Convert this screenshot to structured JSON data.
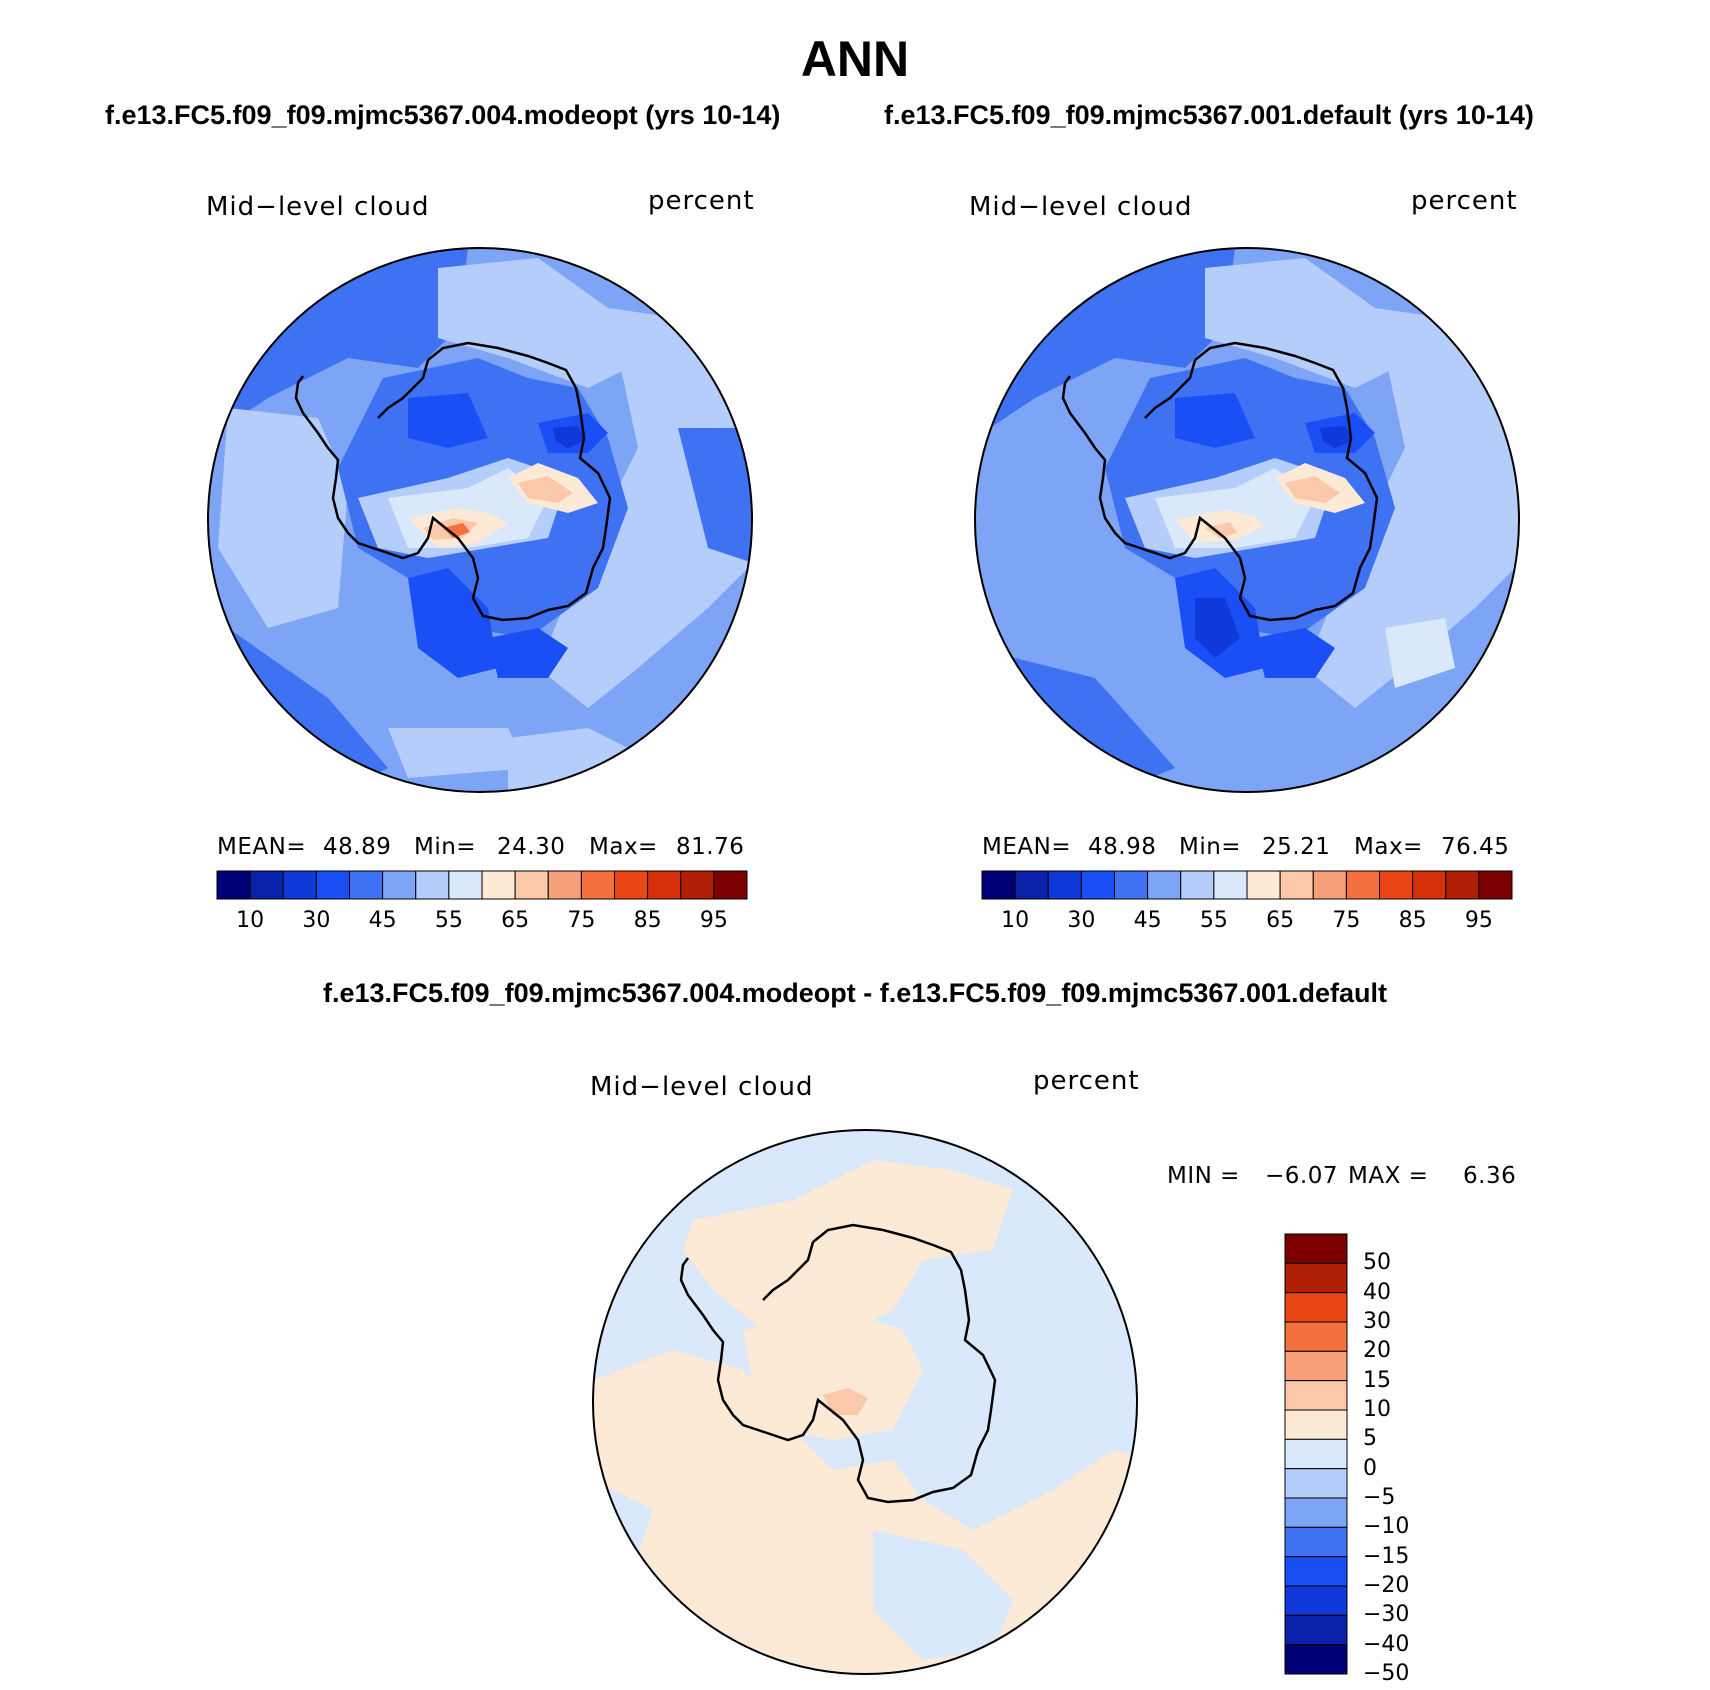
{
  "title": "ANN",
  "case_titles": {
    "left": "f.e13.FC5.f09_f09.mjmc5367.004.modeopt (yrs 10-14)",
    "right": "f.e13.FC5.f09_f09.mjmc5367.001.default (yrs 10-14)"
  },
  "diff_title": "f.e13.FC5.f09_f09.mjmc5367.004.modeopt - f.e13.FC5.f09_f09.mjmc5367.001.default",
  "panels": {
    "left": {
      "variable": "Mid−level cloud",
      "units": "percent",
      "mean_label": "MEAN=",
      "mean": "48.89",
      "min_label": "Min=",
      "min": "24.30",
      "max_label": "Max=",
      "max": "81.76"
    },
    "right": {
      "variable": "Mid−level cloud",
      "units": "percent",
      "mean_label": "MEAN=",
      "mean": "48.98",
      "min_label": "Min=",
      "min": "25.21",
      "max_label": "Max=",
      "max": "76.45"
    },
    "diff": {
      "variable": "Mid−level cloud",
      "units": "percent",
      "min_label": "MIN =",
      "min": "−6.07",
      "max_label": "MAX =",
      "max": "6.36"
    }
  },
  "colorbar_abs": {
    "tick_labels": [
      "10",
      "30",
      "45",
      "55",
      "65",
      "75",
      "85",
      "95"
    ],
    "colors": [
      "#000077",
      "#0a22aa",
      "#0f39d9",
      "#1a4ff5",
      "#3f72f2",
      "#7ea4f5",
      "#b5cdfa",
      "#dae8fb",
      "#fce9d6",
      "#fbc8aa",
      "#f7a07a",
      "#f4703f",
      "#ea4514",
      "#d6300a",
      "#b01e05",
      "#7d0000"
    ]
  },
  "colorbar_diff": {
    "tick_labels": [
      "50",
      "40",
      "30",
      "20",
      "15",
      "10",
      "5",
      "0",
      "−5",
      "−10",
      "−15",
      "−20",
      "−30",
      "−40",
      "−50"
    ],
    "colors": [
      "#7d0000",
      "#b01e05",
      "#ea4514",
      "#f4703f",
      "#f7a07a",
      "#fbc8aa",
      "#fce9d6",
      "#dae8fb",
      "#b5cdfa",
      "#7ea4f5",
      "#3f72f2",
      "#1a4ff5",
      "#0f39d9",
      "#0a22aa",
      "#000077"
    ]
  }
}
